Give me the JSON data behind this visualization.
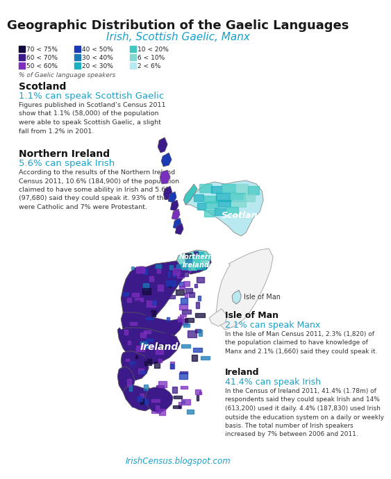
{
  "title": "Geographic Distribution of the Gaelic Languages",
  "subtitle": "Irish, Scottish Gaelic, Manx",
  "title_color": "#1a1a1a",
  "subtitle_color": "#1aa0c8",
  "bg_color": "#ffffff",
  "legend_items": [
    {
      "label": "70 < 75%",
      "color": "#150a3c"
    },
    {
      "label": "60 < 70%",
      "color": "#3d1a8a"
    },
    {
      "label": "50 < 60%",
      "color": "#7b2fbe"
    },
    {
      "label": "40 < 50%",
      "color": "#1a3bb5"
    },
    {
      "label": "30 < 40%",
      "color": "#1a7ab5"
    },
    {
      "label": "20 < 30%",
      "color": "#1ab0c0"
    },
    {
      "label": "10 < 20%",
      "color": "#40c8c0"
    },
    {
      "label": "6 < 10%",
      "color": "#80d8d0"
    },
    {
      "label": "2 < 6%",
      "color": "#b8e8f0"
    }
  ],
  "legend_note": "% of Gaelic language speakers",
  "sections": [
    {
      "region": "Scotland",
      "stat_color": "#1aa0c8",
      "stat": "1.1% can speak Scottish Gaelic",
      "body": "Figures published in Scotland’s Census 2011\nshow that 1.1% (58,000) of the population\nwere able to speak Scottish Gaelic, a slight\nfall from 1.2% in 2001."
    },
    {
      "region": "Northern Ireland",
      "stat_color": "#1aa0c8",
      "stat": "5.6% can speak Irish",
      "body": "According to the results of the Northern Ireland\nCensus 2011, 10.6% (184,900) of the population\nclaimed to have some ability in Irish and 5.6%\n(97,680) said they could speak it. 93% of those\nwere Catholic and 7% were Protestant."
    },
    {
      "region": "Isle of Man",
      "stat_color": "#1aa0c8",
      "stat": "2.1% can speak Manx",
      "body": "In the Isle of Man Census 2011, 2.3% (1,820) of\nthe population claimed to have knowledge of\nManx and 2.1% (1,660) said they could speak it."
    },
    {
      "region": "Ireland",
      "stat_color": "#1aa0c8",
      "stat": "41.4% can speak Irish",
      "body": "In the Census of Ireland 2011, 41.4% (1.78m) of\nrespondents said they could speak Irish and 14%\n(613,200) used it daily. 4.4% (187,830) used Irish\noutside the education system on a daily or weekly\nbasis. The total number of Irish speakers\nincreased by 7% between 2006 and 2011."
    }
  ],
  "footer": "IrishCensus.blogspot.com"
}
